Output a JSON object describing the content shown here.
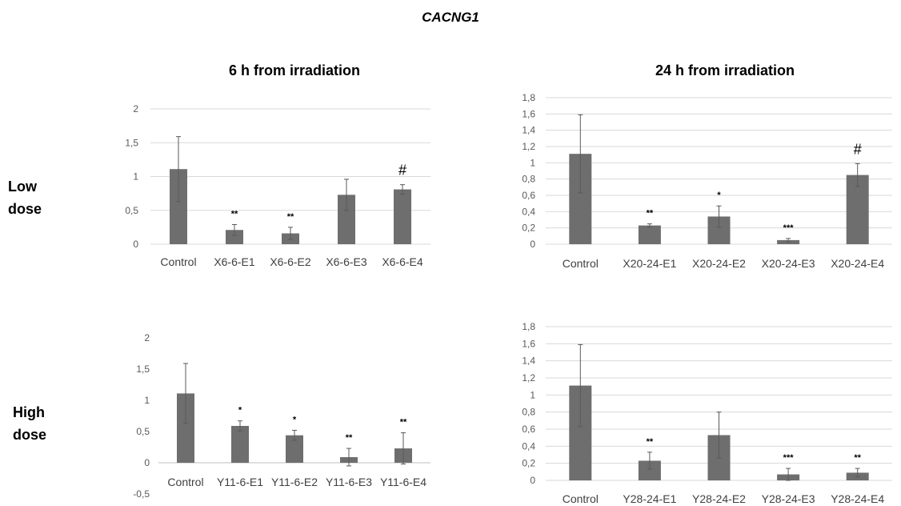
{
  "title": "CACNG1",
  "column_titles": [
    "6 h from irradiation",
    "24 h from irradiation"
  ],
  "row_labels": [
    [
      "Low",
      "dose"
    ],
    [
      "High",
      "dose"
    ]
  ],
  "colors": {
    "bar": "#6e6e6e",
    "grid": "#d9d9d9",
    "error": "#595959"
  },
  "chart_data": [
    {
      "type": "bar",
      "categories": [
        "Control",
        "X6-6-E1",
        "X6-6-E2",
        "X6-6-E3",
        "X6-6-E4"
      ],
      "values": [
        1.11,
        0.21,
        0.16,
        0.73,
        0.81
      ],
      "errors": [
        0.48,
        0.08,
        0.09,
        0.23,
        0.07
      ],
      "annotations": [
        "",
        "**",
        "**",
        "",
        "#"
      ],
      "ylim": [
        0,
        2
      ],
      "yticks": [
        "0",
        "0,5",
        "1",
        "1,5",
        "2"
      ],
      "ytick_values": [
        0,
        0.5,
        1,
        1.5,
        2
      ],
      "grid": true
    },
    {
      "type": "bar",
      "categories": [
        "Control",
        "X20-24-E1",
        "X20-24-E2",
        "X20-24-E3",
        "X20-24-E4"
      ],
      "values": [
        1.11,
        0.23,
        0.34,
        0.05,
        0.85
      ],
      "errors": [
        0.48,
        0.02,
        0.13,
        0.02,
        0.14
      ],
      "annotations": [
        "",
        "**",
        "*",
        "***",
        "#"
      ],
      "ylim": [
        0,
        1.8
      ],
      "yticks": [
        "0",
        "0,2",
        "0,4",
        "0,6",
        "0,8",
        "1",
        "1,2",
        "1,4",
        "1,6",
        "1,8"
      ],
      "ytick_values": [
        0,
        0.2,
        0.4,
        0.6,
        0.8,
        1,
        1.2,
        1.4,
        1.6,
        1.8
      ],
      "grid": true
    },
    {
      "type": "bar",
      "categories": [
        "Control",
        "Y11-6-E1",
        "Y11-6-E2",
        "Y11-6-E3",
        "Y11-6-E4"
      ],
      "values": [
        1.11,
        0.59,
        0.44,
        0.09,
        0.23
      ],
      "errors": [
        0.48,
        0.08,
        0.08,
        0.14,
        0.25
      ],
      "annotations": [
        "",
        "*",
        "*",
        "**",
        "**"
      ],
      "ylim": [
        -0.5,
        2
      ],
      "yticks": [
        "-0,5",
        "0",
        "0,5",
        "1",
        "1,5",
        "2"
      ],
      "ytick_values": [
        -0.5,
        0,
        0.5,
        1,
        1.5,
        2
      ],
      "grid": false
    },
    {
      "type": "bar",
      "categories": [
        "Control",
        "Y28-24-E1",
        "Y28-24-E2",
        "Y28-24-E3",
        "Y28-24-E4"
      ],
      "values": [
        1.11,
        0.23,
        0.53,
        0.07,
        0.09
      ],
      "errors": [
        0.48,
        0.1,
        0.27,
        0.07,
        0.05
      ],
      "annotations": [
        "",
        "**",
        "",
        "***",
        "**"
      ],
      "ylim": [
        0,
        1.8
      ],
      "yticks": [
        "0",
        "0,2",
        "0,4",
        "0,6",
        "0,8",
        "1",
        "1,2",
        "1,4",
        "1,6",
        "1,8"
      ],
      "ytick_values": [
        0,
        0.2,
        0.4,
        0.6,
        0.8,
        1,
        1.2,
        1.4,
        1.6,
        1.8
      ],
      "grid": true
    }
  ]
}
